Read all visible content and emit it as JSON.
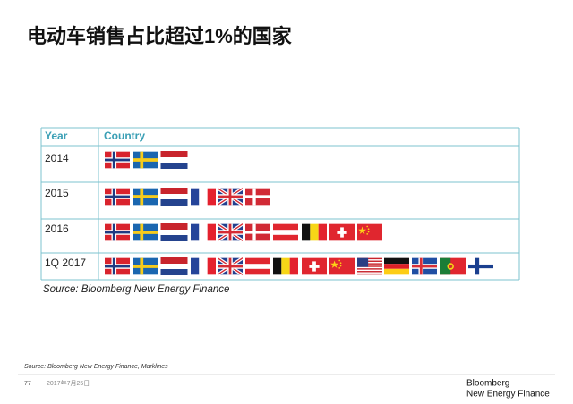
{
  "header": {
    "title": "电动车销售占比超过1%的国家"
  },
  "table": {
    "columns": [
      "Year",
      "Country"
    ],
    "rows": [
      [
        "2014"
      ],
      [
        "2015"
      ],
      [
        "2016"
      ],
      [
        "1Q 2017"
      ]
    ]
  },
  "caption": "Source: Bloomberg New Energy Finance",
  "footer": {
    "source": "Source: Bloomberg New Energy Finance, Marklines",
    "page": "77",
    "date": "2017年7月25日",
    "logo": [
      "Bloomberg",
      "New Energy Finance"
    ]
  }
}
